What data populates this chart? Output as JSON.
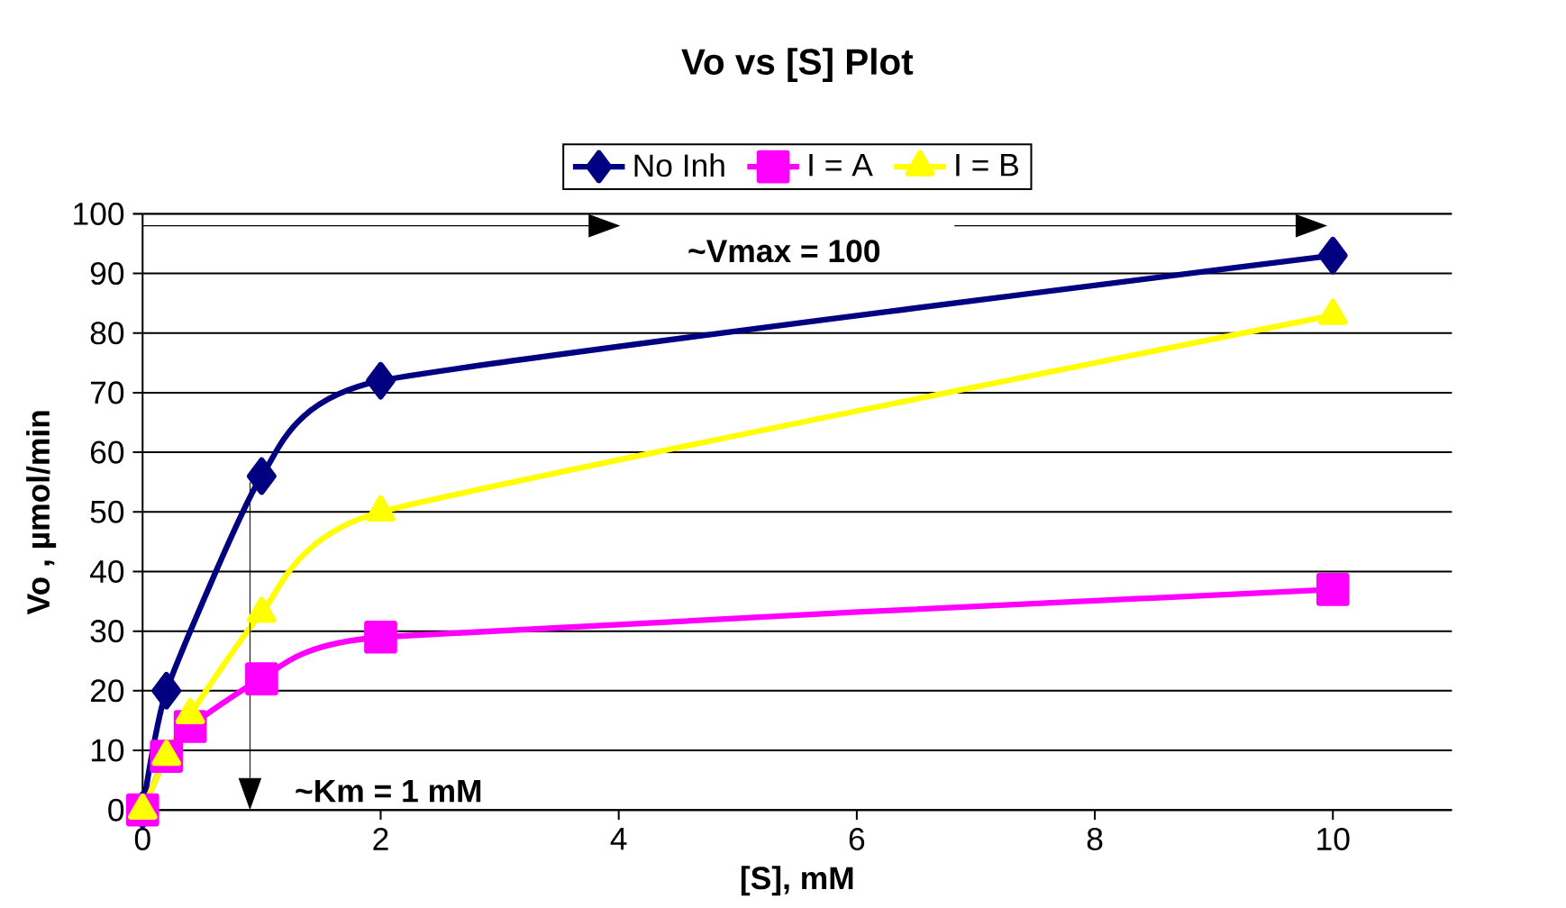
{
  "chart_data": {
    "type": "line",
    "title": "Vo vs [S] Plot",
    "xlabel": "[S], mM",
    "ylabel": "Vo , µmol/min",
    "xlim": [
      0,
      11
    ],
    "xticks": [
      0,
      2,
      4,
      6,
      8,
      10
    ],
    "ylim": [
      0,
      100
    ],
    "yticks": [
      0,
      10,
      20,
      30,
      40,
      50,
      60,
      70,
      80,
      90,
      100
    ],
    "grid": "y",
    "legend": "top",
    "series": [
      {
        "name": "No Inh",
        "color": "#000080",
        "marker": "diamond",
        "x": [
          0,
          0.2,
          1,
          2,
          10
        ],
        "values": [
          0,
          20,
          56,
          72,
          93
        ]
      },
      {
        "name": "I = A",
        "color": "#ff00ff",
        "marker": "square",
        "x": [
          0,
          0.2,
          0.4,
          1,
          2,
          10
        ],
        "values": [
          0,
          9,
          14,
          22,
          29,
          37
        ]
      },
      {
        "name": "I = B",
        "color": "#ffff00",
        "marker": "triangle",
        "x": [
          0,
          0.2,
          0.4,
          1,
          2,
          10
        ],
        "values": [
          0,
          9,
          16,
          33,
          50,
          83
        ]
      }
    ],
    "annotations": [
      "~Vmax = 100",
      "~Km = 1 mM"
    ]
  }
}
